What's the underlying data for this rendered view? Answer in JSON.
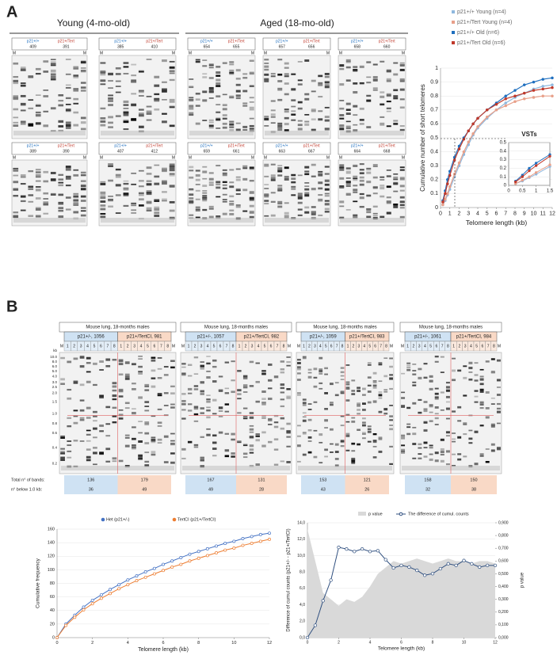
{
  "panel_a": {
    "label": "A",
    "young": "Young (4-mo-old)",
    "aged": "Aged (18-mo-old)",
    "marker": "M",
    "genotypes": [
      "p21+/+",
      "p21+/Tert"
    ],
    "gels": [
      [
        "409",
        "391"
      ],
      [
        "385",
        "410"
      ],
      [
        "654",
        "655"
      ],
      [
        "657",
        "656"
      ],
      [
        "658",
        "660"
      ],
      [
        "389",
        "390"
      ],
      [
        "407",
        "412"
      ],
      [
        "659",
        "661"
      ],
      [
        "663",
        "667"
      ],
      [
        "664",
        "668"
      ]
    ],
    "chart_data": {
      "type": "line",
      "x_label": "Telomere length (kb)",
      "y_label": "Cumulative number of short telomeres",
      "x": [
        0.25,
        0.5,
        0.75,
        1,
        1.5,
        2,
        2.5,
        3,
        3.5,
        4,
        5,
        6,
        7,
        8,
        9,
        10,
        11,
        12
      ],
      "xlim": [
        0,
        12
      ],
      "xticks": [
        0,
        1,
        2,
        3,
        4,
        5,
        6,
        7,
        8,
        9,
        10,
        11,
        12
      ],
      "ylim": [
        0,
        1
      ],
      "yticks": [
        0,
        0.1,
        0.2,
        0.3,
        0.4,
        0.5,
        0.6,
        0.7,
        0.8,
        0.9,
        1
      ],
      "series": [
        {
          "name": "p21+/+ Young (n=4)",
          "color": "#8fb8de",
          "values": [
            0.02,
            0.05,
            0.09,
            0.13,
            0.22,
            0.3,
            0.38,
            0.45,
            0.52,
            0.57,
            0.64,
            0.7,
            0.75,
            0.79,
            0.82,
            0.85,
            0.87,
            0.88
          ]
        },
        {
          "name": "p21+/Tert Young (n=4)",
          "color": "#e8a08a",
          "values": [
            0.02,
            0.06,
            0.1,
            0.15,
            0.24,
            0.32,
            0.4,
            0.47,
            0.53,
            0.58,
            0.65,
            0.7,
            0.73,
            0.76,
            0.78,
            0.79,
            0.8,
            0.8
          ]
        },
        {
          "name": "p21+/+ Old (n=6)",
          "color": "#1f6fbf",
          "values": [
            0.05,
            0.12,
            0.2,
            0.26,
            0.36,
            0.44,
            0.5,
            0.55,
            0.6,
            0.64,
            0.7,
            0.75,
            0.8,
            0.84,
            0.88,
            0.9,
            0.92,
            0.93
          ]
        },
        {
          "name": "p21+/Tert Old (n=6)",
          "color": "#c0392b",
          "values": [
            0.04,
            0.1,
            0.17,
            0.23,
            0.34,
            0.42,
            0.49,
            0.55,
            0.6,
            0.64,
            0.7,
            0.74,
            0.78,
            0.8,
            0.82,
            0.84,
            0.85,
            0.86
          ]
        }
      ],
      "inset": {
        "title": "VSTs",
        "xlim": [
          0,
          1.5
        ],
        "ylim": [
          0,
          0.5
        ],
        "xticks": [
          0,
          0.5,
          1,
          1.5
        ],
        "yticks": [
          0,
          0.1,
          0.2,
          0.3,
          0.4,
          0.5
        ]
      }
    }
  },
  "panel_b": {
    "label": "B",
    "marker": "M",
    "lanes": [
      "1",
      "2",
      "3",
      "4",
      "5",
      "6",
      "7",
      "8"
    ],
    "ladder": [
      "kb",
      "10.0",
      "8.0",
      "6.0",
      "5.0",
      "4.0",
      "3.0",
      "2.5",
      "2.0",
      "1.5",
      "1.0",
      "0.8",
      "0.6",
      "0.4",
      "0.2"
    ],
    "total_label": "Total n° of bands:",
    "below_label": "n° below 1.0 kb:",
    "gels": [
      {
        "title": "Mouse lung, 18-months males",
        "left": "p21+/-, 1056",
        "right": "p21+/TertCI, 981",
        "total": [
          "136",
          "179"
        ],
        "below": [
          "36",
          "49"
        ]
      },
      {
        "title": "Mouse lung, 18-months males",
        "left": "p21+/-, 1057",
        "right": "p21+/TertCI, 982",
        "total": [
          "167",
          "131"
        ],
        "below": [
          "49",
          "28"
        ]
      },
      {
        "title": "Mouse lung, 18-months males",
        "left": "p21+/-, 1059",
        "right": "p21+/TertCI, 983",
        "total": [
          "153",
          "121"
        ],
        "below": [
          "43",
          "26"
        ]
      },
      {
        "title": "Mouse lung, 18-months males",
        "left": "p21+/-, 1061",
        "right": "p21+/TertCI, 984",
        "total": [
          "158",
          "150"
        ],
        "below": [
          "32",
          "38"
        ]
      }
    ]
  },
  "chart_left": {
    "type": "line",
    "x_label": "Telomere length (kb)",
    "y_label": "Cumulative frequency",
    "x": [
      0,
      0.5,
      1,
      1.5,
      2,
      2.5,
      3,
      3.5,
      4,
      4.5,
      5,
      5.5,
      6,
      6.5,
      7,
      7.5,
      8,
      8.5,
      9,
      9.5,
      10,
      10.5,
      11,
      11.5,
      12
    ],
    "xlim": [
      0,
      12
    ],
    "xticks": [
      0,
      2,
      4,
      6,
      8,
      10,
      12
    ],
    "ylim": [
      0,
      160
    ],
    "yticks": [
      0,
      20,
      40,
      60,
      80,
      100,
      120,
      140,
      160
    ],
    "series": [
      {
        "name": "Het (p21+/-)",
        "color": "#4472c4",
        "values": [
          0,
          20,
          33,
          45,
          55,
          63,
          71,
          78,
          85,
          91,
          97,
          102,
          108,
          113,
          118,
          123,
          127,
          131,
          135,
          139,
          142,
          146,
          149,
          152,
          154
        ]
      },
      {
        "name": "TertCI (p21+/TertCI)",
        "color": "#ed7d31",
        "values": [
          0,
          18,
          30,
          41,
          50,
          58,
          65,
          72,
          78,
          84,
          89,
          94,
          99,
          104,
          108,
          113,
          117,
          121,
          125,
          129,
          132,
          136,
          139,
          142,
          145
        ]
      }
    ]
  },
  "chart_right": {
    "type": "line",
    "x_label": "Telomere length (kb)",
    "y_label": "Difference of cumul counts (p21+/- - p21+/TertCI)",
    "y2_label": "p value",
    "x": [
      0,
      0.5,
      1,
      1.5,
      2,
      2.5,
      3,
      3.5,
      4,
      4.5,
      5,
      5.5,
      6,
      6.5,
      7,
      7.5,
      8,
      8.5,
      9,
      9.5,
      10,
      10.5,
      11,
      11.5,
      12
    ],
    "xlim": [
      0,
      12
    ],
    "xticks": [
      0,
      2,
      4,
      6,
      8,
      10,
      12
    ],
    "ylim": [
      0,
      14
    ],
    "yticks": [
      {
        "value": 0,
        "label": "0,0"
      },
      {
        "value": 2,
        "label": "2,0"
      },
      {
        "value": 4,
        "label": "4,0"
      },
      {
        "value": 6,
        "label": "6,0"
      },
      {
        "value": 8,
        "label": "8,0"
      },
      {
        "value": 10,
        "label": "10,0"
      },
      {
        "value": 12,
        "label": "12,0"
      },
      {
        "value": 14,
        "label": "14,0"
      }
    ],
    "y2lim": [
      0,
      0.9
    ],
    "y2ticks": [
      {
        "value": 0,
        "label": "0,000"
      },
      {
        "value": 0.1,
        "label": "0,100"
      },
      {
        "value": 0.2,
        "label": "0,200"
      },
      {
        "value": 0.3,
        "label": "0,300"
      },
      {
        "value": 0.4,
        "label": "0,400"
      },
      {
        "value": 0.5,
        "label": "0,500"
      },
      {
        "value": 0.6,
        "label": "0,600"
      },
      {
        "value": 0.7,
        "label": "0,700"
      },
      {
        "value": 0.8,
        "label": "0,800"
      },
      {
        "value": 0.9,
        "label": "0,900"
      }
    ],
    "series": [
      {
        "name": "p value",
        "type": "area",
        "axis": "y2",
        "color": "#d9d9d9",
        "values": [
          0.85,
          0.6,
          0.35,
          0.3,
          0.25,
          0.3,
          0.28,
          0.32,
          0.4,
          0.5,
          0.55,
          0.6,
          0.58,
          0.6,
          0.62,
          0.6,
          0.58,
          0.6,
          0.62,
          0.6,
          0.6,
          0.58,
          0.6,
          0.6,
          0.58
        ]
      },
      {
        "name": "The difference of cumul. counts",
        "color": "#2f4f7f",
        "values": [
          0,
          1.5,
          4.5,
          7,
          11,
          10.8,
          10.5,
          10.8,
          10.5,
          10.6,
          9.5,
          8.5,
          8.8,
          8.6,
          8.2,
          7.6,
          7.8,
          8.4,
          9,
          8.8,
          9.4,
          9,
          8.6,
          8.8,
          8.8
        ]
      }
    ]
  }
}
